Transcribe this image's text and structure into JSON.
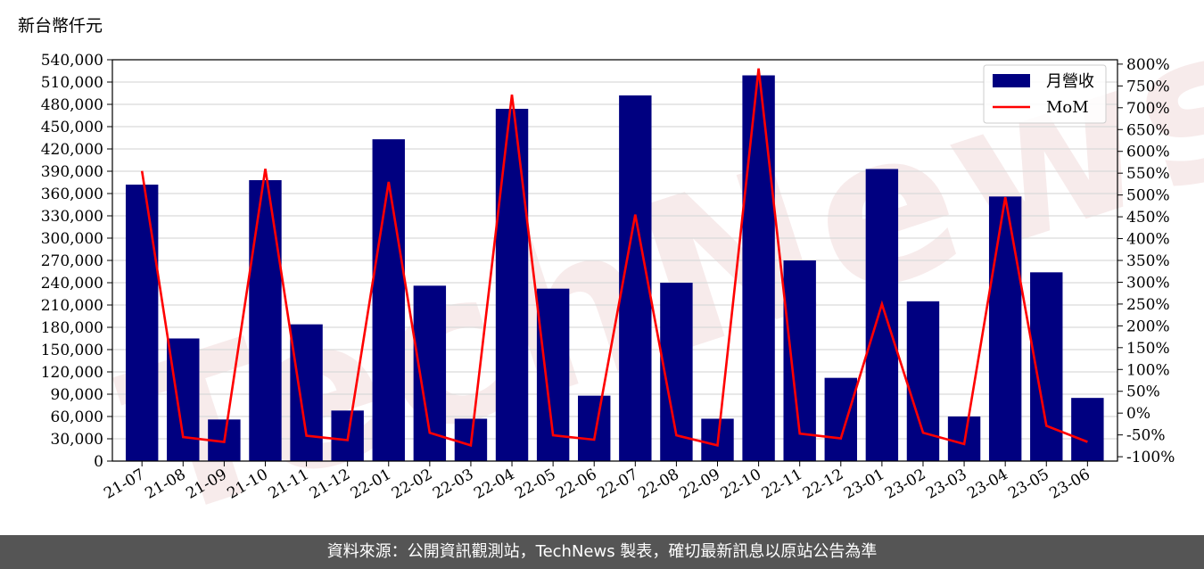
{
  "unit_label": "新台幣仟元",
  "watermark": "TechNews",
  "footer": "資料來源：公開資訊觀測站，TechNews 製表，確切最新訊息以原站公告為準",
  "colors": {
    "bar": "#000080",
    "line": "#ff0000",
    "grid": "#d9d9d9",
    "footer_bg": "#555555"
  },
  "chart_data": {
    "type": "bar",
    "categories": [
      "21-07",
      "21-08",
      "21-09",
      "21-10",
      "21-11",
      "21-12",
      "22-01",
      "22-02",
      "22-03",
      "22-04",
      "22-05",
      "22-06",
      "22-07",
      "22-08",
      "22-09",
      "22-10",
      "22-11",
      "22-12",
      "23-01",
      "23-02",
      "23-03",
      "23-04",
      "23-05",
      "23-06"
    ],
    "series": [
      {
        "name": "月營收",
        "type": "bar",
        "axis": "left",
        "values": [
          372000,
          165000,
          56000,
          378000,
          184000,
          68000,
          433000,
          236000,
          57000,
          474000,
          232000,
          88000,
          492000,
          240000,
          57000,
          519000,
          270000,
          112000,
          393000,
          215000,
          60000,
          356000,
          254000,
          85000
        ]
      },
      {
        "name": "MoM",
        "type": "line",
        "axis": "right",
        "values": [
          555,
          -55,
          -66,
          560,
          -52,
          -62,
          530,
          -45,
          -74,
          730,
          -51,
          -61,
          455,
          -51,
          -74,
          790,
          -47,
          -58,
          250,
          -45,
          -71,
          495,
          -29,
          -66
        ]
      }
    ],
    "y_left": {
      "ylim": [
        0,
        540000
      ],
      "ticks": [
        0,
        30000,
        60000,
        90000,
        120000,
        150000,
        180000,
        210000,
        240000,
        270000,
        300000,
        330000,
        360000,
        390000,
        420000,
        450000,
        480000,
        510000,
        540000
      ],
      "tick_labels": [
        "0",
        "30,000",
        "60,000",
        "90,000",
        "120,000",
        "150,000",
        "180,000",
        "210,000",
        "240,000",
        "270,000",
        "300,000",
        "330,000",
        "360,000",
        "390,000",
        "420,000",
        "450,000",
        "480,000",
        "510,000",
        "540,000"
      ]
    },
    "y_right": {
      "ylim": [
        -110,
        810
      ],
      "ticks": [
        -100,
        -50,
        0,
        50,
        100,
        150,
        200,
        250,
        300,
        350,
        400,
        450,
        500,
        550,
        600,
        650,
        700,
        750,
        800
      ],
      "tick_labels": [
        "-100%",
        "-50%",
        "0%",
        "50%",
        "100%",
        "150%",
        "200%",
        "250%",
        "300%",
        "350%",
        "400%",
        "450%",
        "500%",
        "550%",
        "600%",
        "650%",
        "700%",
        "750%",
        "800%"
      ]
    },
    "grid": true,
    "legend_placement": "top-right"
  }
}
